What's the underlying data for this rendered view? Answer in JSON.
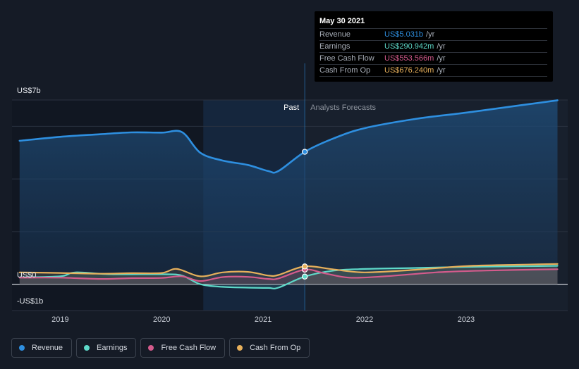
{
  "chart_data": {
    "type": "line",
    "y_ticks": [
      "US$7b",
      "US$0",
      "-US$1b"
    ],
    "x_ticks": [
      "2019",
      "2020",
      "2021",
      "2022",
      "2023"
    ],
    "ylim": [
      -1.0,
      7.0
    ],
    "xlim": [
      2018.55,
      2023.9
    ],
    "grid": true,
    "legend_position": "bottom-left",
    "zones": {
      "past_label": "Past",
      "forecast_label": "Analysts Forecasts",
      "divider_x": 2021.41,
      "highlight_start_x": 2020.41
    },
    "series": [
      {
        "name": "Revenue",
        "color": "#2e8fe0",
        "x": [
          2018.6,
          2019.0,
          2019.4,
          2019.7,
          2020.0,
          2020.2,
          2020.38,
          2020.6,
          2020.85,
          2021.05,
          2021.15,
          2021.41,
          2021.7,
          2022.0,
          2022.5,
          2023.0,
          2023.5,
          2023.9
        ],
        "y": [
          5.45,
          5.6,
          5.7,
          5.77,
          5.76,
          5.78,
          5.0,
          4.7,
          4.53,
          4.3,
          4.3,
          5.031,
          5.55,
          5.93,
          6.28,
          6.52,
          6.78,
          6.99
        ]
      },
      {
        "name": "Earnings",
        "color": "#5ed9c9",
        "x": [
          2018.6,
          2019.0,
          2019.15,
          2019.5,
          2020.0,
          2020.2,
          2020.38,
          2020.6,
          2020.85,
          2021.05,
          2021.15,
          2021.41,
          2021.7,
          2022.0,
          2022.5,
          2023.0,
          2023.5,
          2023.9
        ],
        "y": [
          0.26,
          0.3,
          0.45,
          0.38,
          0.38,
          0.33,
          0.0,
          -0.1,
          -0.13,
          -0.14,
          -0.13,
          0.291,
          0.52,
          0.58,
          0.62,
          0.66,
          0.68,
          0.7
        ]
      },
      {
        "name": "Free Cash Flow",
        "color": "#d45b8c",
        "x": [
          2018.6,
          2019.0,
          2019.4,
          2019.7,
          2020.0,
          2020.2,
          2020.38,
          2020.6,
          2020.85,
          2021.05,
          2021.15,
          2021.41,
          2021.6,
          2021.85,
          2022.2,
          2022.7,
          2023.2,
          2023.9
        ],
        "y": [
          0.25,
          0.25,
          0.2,
          0.23,
          0.24,
          0.3,
          0.12,
          0.27,
          0.28,
          0.2,
          0.22,
          0.554,
          0.42,
          0.25,
          0.3,
          0.45,
          0.52,
          0.57
        ]
      },
      {
        "name": "Cash From Op",
        "color": "#e7b05b",
        "x": [
          2018.6,
          2019.0,
          2019.4,
          2019.7,
          2020.0,
          2020.15,
          2020.38,
          2020.6,
          2020.85,
          2021.05,
          2021.15,
          2021.41,
          2021.7,
          2022.0,
          2022.5,
          2023.0,
          2023.5,
          2023.9
        ],
        "y": [
          0.45,
          0.43,
          0.4,
          0.42,
          0.43,
          0.58,
          0.3,
          0.45,
          0.47,
          0.33,
          0.35,
          0.676,
          0.56,
          0.45,
          0.55,
          0.69,
          0.74,
          0.77
        ]
      }
    ],
    "tooltip": {
      "date": "May 30 2021",
      "rows": [
        {
          "name": "Revenue",
          "value": "US$5.031b",
          "unit": "/yr",
          "color": "#2e8fe0"
        },
        {
          "name": "Earnings",
          "value": "US$290.942m",
          "unit": "/yr",
          "color": "#5ed9c9"
        },
        {
          "name": "Free Cash Flow",
          "value": "US$553.566m",
          "unit": "/yr",
          "color": "#d45b8c"
        },
        {
          "name": "Cash From Op",
          "value": "US$676.240m",
          "unit": "/yr",
          "color": "#e7b05b"
        }
      ]
    }
  },
  "legend": [
    {
      "label": "Revenue",
      "color": "#2e8fe0"
    },
    {
      "label": "Earnings",
      "color": "#5ed9c9"
    },
    {
      "label": "Free Cash Flow",
      "color": "#d45b8c"
    },
    {
      "label": "Cash From Op",
      "color": "#e7b05b"
    }
  ]
}
